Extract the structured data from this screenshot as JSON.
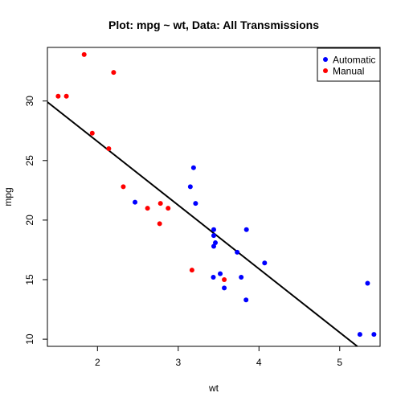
{
  "chart_data": {
    "type": "scatter",
    "title": "Plot: mpg ~ wt,  Data: All Transmissions",
    "xlabel": "wt",
    "ylabel": "mpg",
    "xlim": [
      1.38,
      5.5
    ],
    "ylim": [
      9.4,
      34.5
    ],
    "xticks": [
      2,
      3,
      4,
      5
    ],
    "yticks": [
      10,
      15,
      20,
      25,
      30
    ],
    "legend_position": "top-right",
    "series": [
      {
        "name": "Automatic",
        "color": "#0000ff",
        "points": [
          [
            3.215,
            21.4
          ],
          [
            3.44,
            18.7
          ],
          [
            3.46,
            18.1
          ],
          [
            3.57,
            14.3
          ],
          [
            3.19,
            24.4
          ],
          [
            3.15,
            22.8
          ],
          [
            3.44,
            19.2
          ],
          [
            3.44,
            17.8
          ],
          [
            4.07,
            16.4
          ],
          [
            3.73,
            17.3
          ],
          [
            3.78,
            15.2
          ],
          [
            5.25,
            10.4
          ],
          [
            5.424,
            10.4
          ],
          [
            5.345,
            14.7
          ],
          [
            2.465,
            21.5
          ],
          [
            3.52,
            15.5
          ],
          [
            3.435,
            15.2
          ],
          [
            3.84,
            13.3
          ],
          [
            3.845,
            19.2
          ]
        ]
      },
      {
        "name": "Manual",
        "color": "#ff0000",
        "points": [
          [
            2.62,
            21.0
          ],
          [
            2.875,
            21.0
          ],
          [
            2.32,
            22.8
          ],
          [
            2.2,
            32.4
          ],
          [
            1.615,
            30.4
          ],
          [
            1.835,
            33.9
          ],
          [
            1.935,
            27.3
          ],
          [
            2.14,
            26.0
          ],
          [
            1.513,
            30.4
          ],
          [
            3.17,
            15.8
          ],
          [
            2.77,
            19.7
          ],
          [
            3.57,
            15.0
          ],
          [
            2.78,
            21.4
          ]
        ]
      }
    ],
    "regression_line": {
      "intercept": 37.285,
      "slope": -5.344,
      "color": "#000000"
    }
  }
}
